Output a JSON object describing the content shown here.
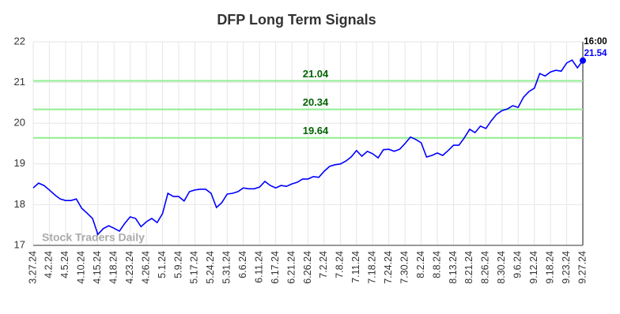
{
  "chart_data": {
    "type": "line",
    "title": "DFP Long Term Signals",
    "categories": [
      "3.27.24",
      null,
      null,
      "4.2.24",
      null,
      null,
      "4.5.24",
      null,
      null,
      "4.10.24",
      null,
      null,
      "4.15.24",
      null,
      null,
      "4.18.24",
      null,
      null,
      "4.23.24",
      null,
      null,
      "4.26.24",
      null,
      null,
      "5.1.24",
      null,
      null,
      "5.9.24",
      null,
      null,
      "5.17.24",
      null,
      null,
      "5.24.24",
      null,
      null,
      "5.31.24",
      null,
      null,
      "6.6.24",
      null,
      null,
      "6.11.24",
      null,
      null,
      "6.17.24",
      null,
      null,
      "6.21.24",
      null,
      null,
      "6.26.24",
      null,
      null,
      "7.2.24",
      null,
      null,
      "7.8.24",
      null,
      null,
      "7.11.24",
      null,
      null,
      "7.18.24",
      null,
      null,
      "7.24.24",
      null,
      null,
      "7.30.24",
      null,
      null,
      "8.2.24",
      null,
      null,
      "8.8.24",
      null,
      null,
      "8.13.24",
      null,
      null,
      "8.21.24",
      null,
      null,
      "8.26.24",
      null,
      null,
      "8.30.24",
      null,
      null,
      "9.6.24",
      null,
      null,
      "9.12.24",
      null,
      null,
      "9.18.24",
      null,
      null,
      "9.23.24",
      null,
      null,
      "9.27.24"
    ],
    "values": [
      18.41,
      18.53,
      18.47,
      18.36,
      18.24,
      18.14,
      18.1,
      18.1,
      18.14,
      17.91,
      17.79,
      17.66,
      17.27,
      17.41,
      17.48,
      17.42,
      17.35,
      17.54,
      17.7,
      17.66,
      17.46,
      17.58,
      17.66,
      17.56,
      17.78,
      18.28,
      18.2,
      18.2,
      18.09,
      18.32,
      18.36,
      18.38,
      18.38,
      18.28,
      17.93,
      18.05,
      18.26,
      18.28,
      18.32,
      18.41,
      18.39,
      18.39,
      18.43,
      18.57,
      18.47,
      18.41,
      18.47,
      18.45,
      18.51,
      18.55,
      18.63,
      18.63,
      18.69,
      18.67,
      18.82,
      18.94,
      18.98,
      19.0,
      19.07,
      19.17,
      19.33,
      19.19,
      19.31,
      19.25,
      19.15,
      19.35,
      19.36,
      19.31,
      19.36,
      19.5,
      19.66,
      19.6,
      19.52,
      19.17,
      19.21,
      19.27,
      19.21,
      19.33,
      19.46,
      19.46,
      19.64,
      19.85,
      19.77,
      19.93,
      19.87,
      20.06,
      20.22,
      20.31,
      20.35,
      20.43,
      20.39,
      20.64,
      20.78,
      20.86,
      21.22,
      21.16,
      21.26,
      21.3,
      21.28,
      21.48,
      21.55,
      21.36,
      21.54
    ],
    "color": "#0000ff",
    "ylim": [
      17,
      22
    ],
    "yticks": [
      17,
      18,
      19,
      20,
      21,
      22
    ],
    "grid": true,
    "reference_lines": [
      21.04,
      20.34,
      19.64
    ],
    "reference_color": "#90ee90",
    "reference_label_color": "#006400",
    "last_time": "16:00",
    "watermark": "Stock Traders Daily"
  }
}
